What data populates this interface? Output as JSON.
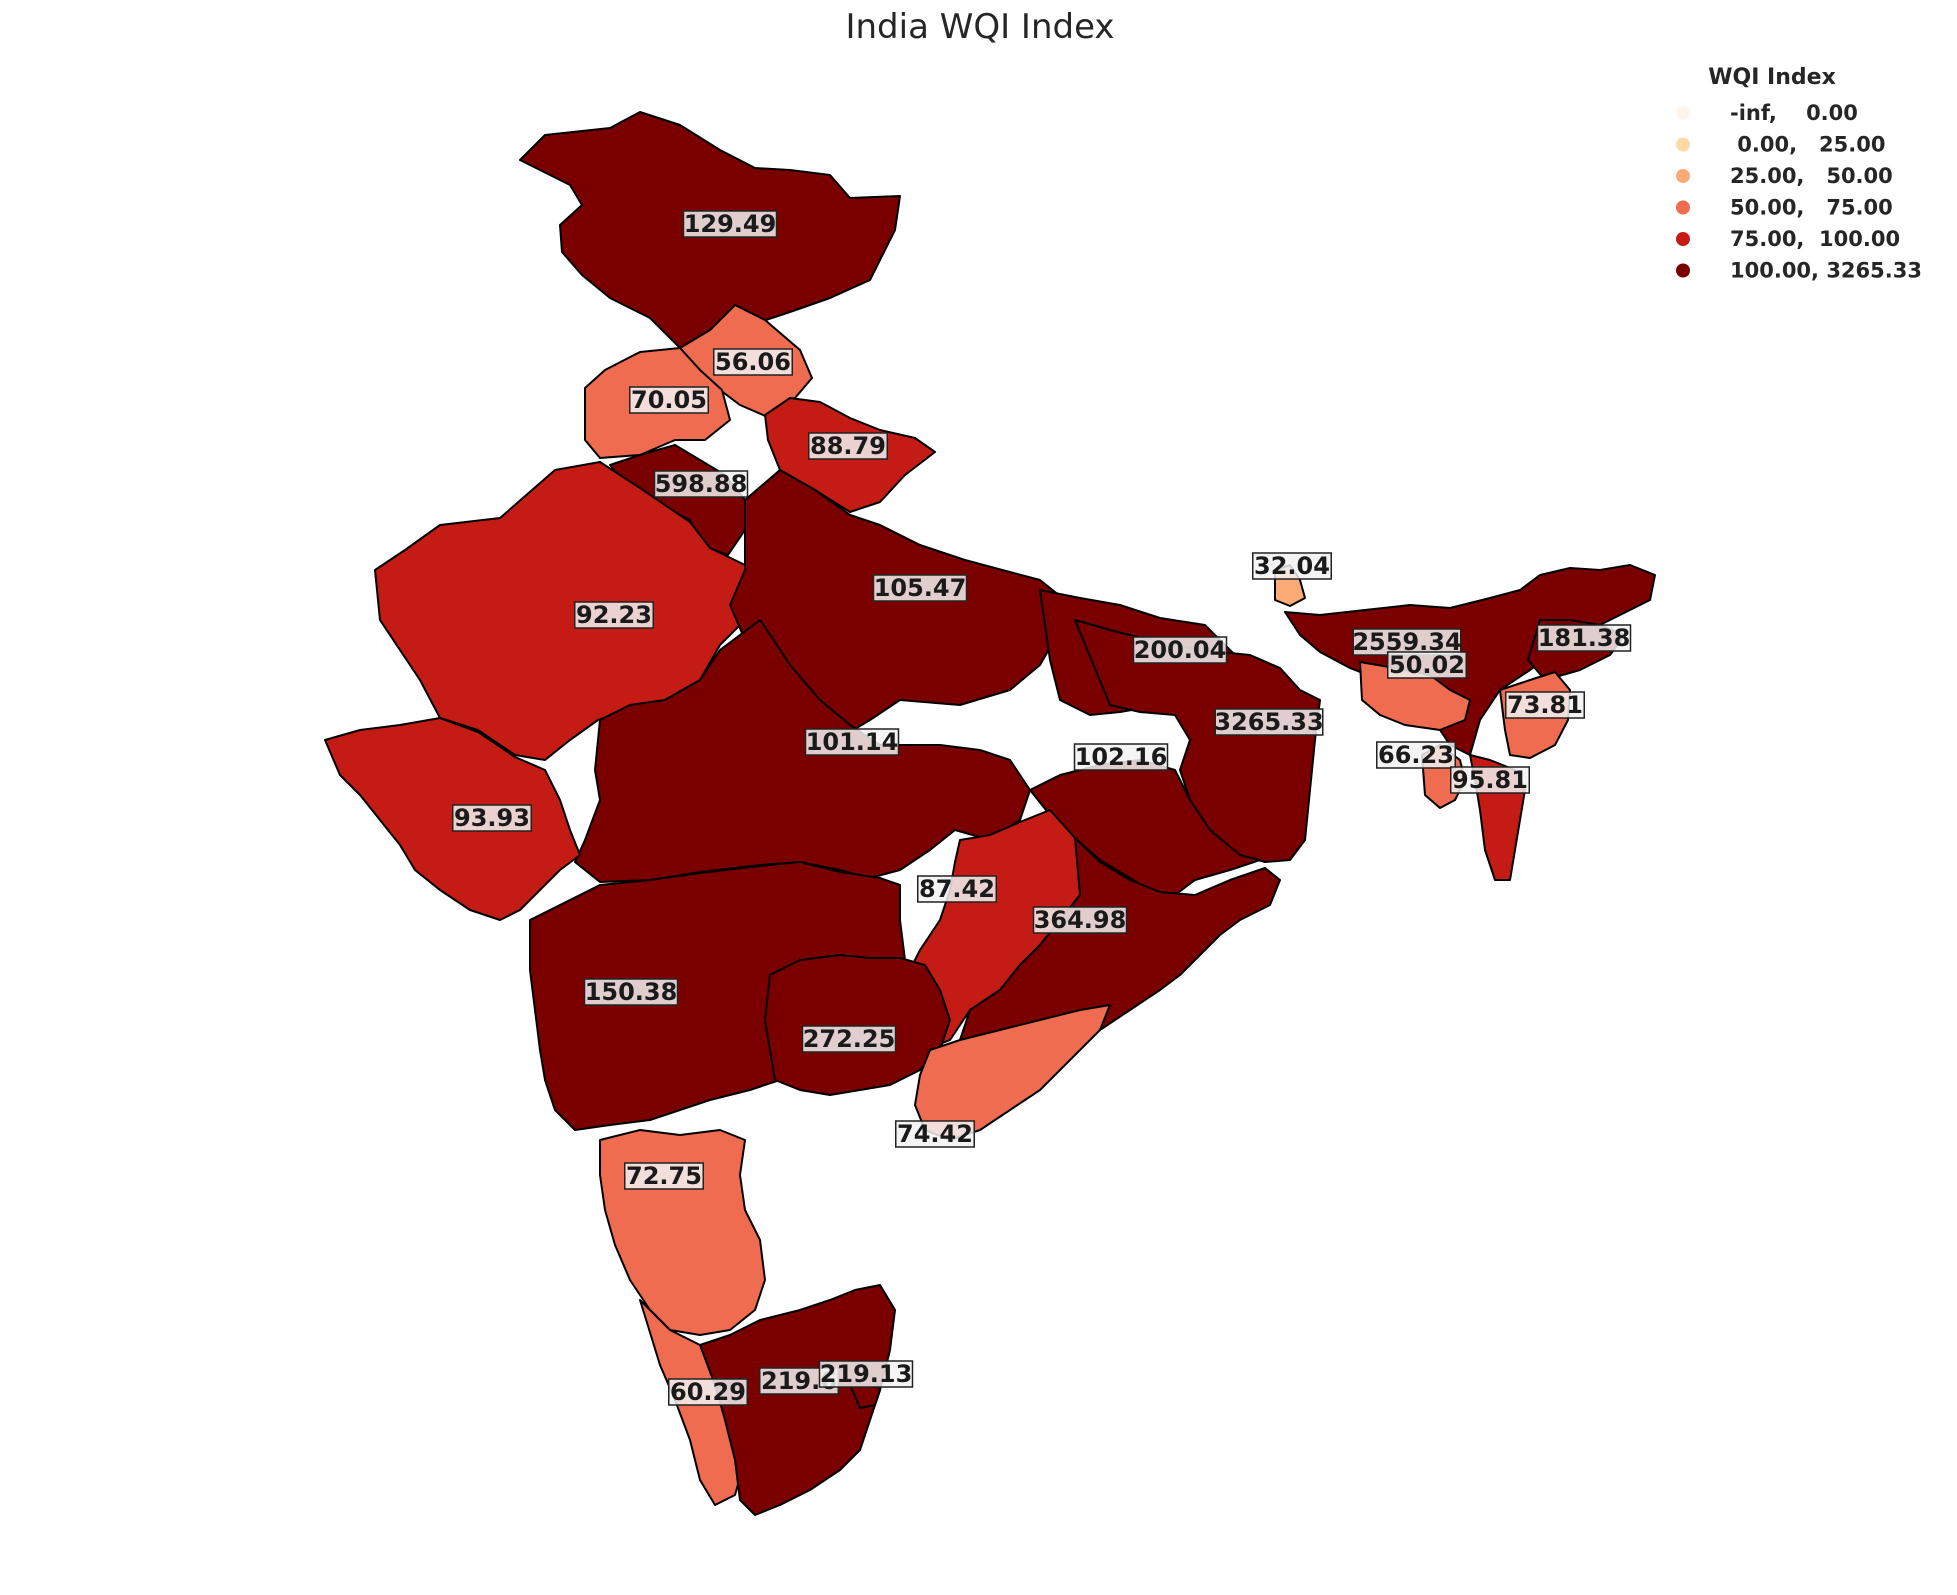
{
  "title": "India WQI Index",
  "legend": {
    "title": "WQI Index",
    "items": [
      {
        "label": "-inf,    0.00",
        "color": "#fff5eb"
      },
      {
        "label": " 0.00,   25.00",
        "color": "#fdd9a8"
      },
      {
        "label": "25.00,   50.00",
        "color": "#fcaa76"
      },
      {
        "label": "50.00,   75.00",
        "color": "#f06c50"
      },
      {
        "label": "75.00,  100.00",
        "color": "#c41c15"
      },
      {
        "label": "100.00, 3265.33",
        "color": "#7a0000"
      }
    ]
  },
  "chart_data": {
    "type": "choropleth",
    "title": "India WQI Index",
    "legend_placement": "top-right",
    "values": [
      {
        "value": 129.49,
        "label": "129.49"
      },
      {
        "value": 56.06,
        "label": "56.06"
      },
      {
        "value": 70.05,
        "label": "70.05"
      },
      {
        "value": 88.79,
        "label": "88.79"
      },
      {
        "value": 598.88,
        "label": "598.88"
      },
      {
        "value": 92.23,
        "label": "92.23"
      },
      {
        "value": 105.47,
        "label": "105.47"
      },
      {
        "value": 32.04,
        "label": "32.04"
      },
      {
        "value": 200.04,
        "label": "200.04"
      },
      {
        "value": 2559.34,
        "label": "2559.34"
      },
      {
        "value": 181.38,
        "label": "181.38"
      },
      {
        "value": 50.02,
        "label": "50.02"
      },
      {
        "value": 73.81,
        "label": "73.81"
      },
      {
        "value": 3265.33,
        "label": "3265.33"
      },
      {
        "value": 101.14,
        "label": "101.14"
      },
      {
        "value": 66.23,
        "label": "66.23"
      },
      {
        "value": 95.81,
        "label": "95.81"
      },
      {
        "value": 102.16,
        "label": "102.16"
      },
      {
        "value": 93.93,
        "label": "93.93"
      },
      {
        "value": 87.42,
        "label": "87.42"
      },
      {
        "value": 364.98,
        "label": "364.98"
      },
      {
        "value": 150.38,
        "label": "150.38"
      },
      {
        "value": 272.25,
        "label": "272.25"
      },
      {
        "value": 74.42,
        "label": "74.42"
      },
      {
        "value": 72.75,
        "label": "72.75"
      },
      {
        "value": 60.29,
        "label": "60.29"
      },
      {
        "value": 219.6,
        "label": "219.6"
      },
      {
        "value": 219.13,
        "label": "219.13"
      }
    ]
  }
}
